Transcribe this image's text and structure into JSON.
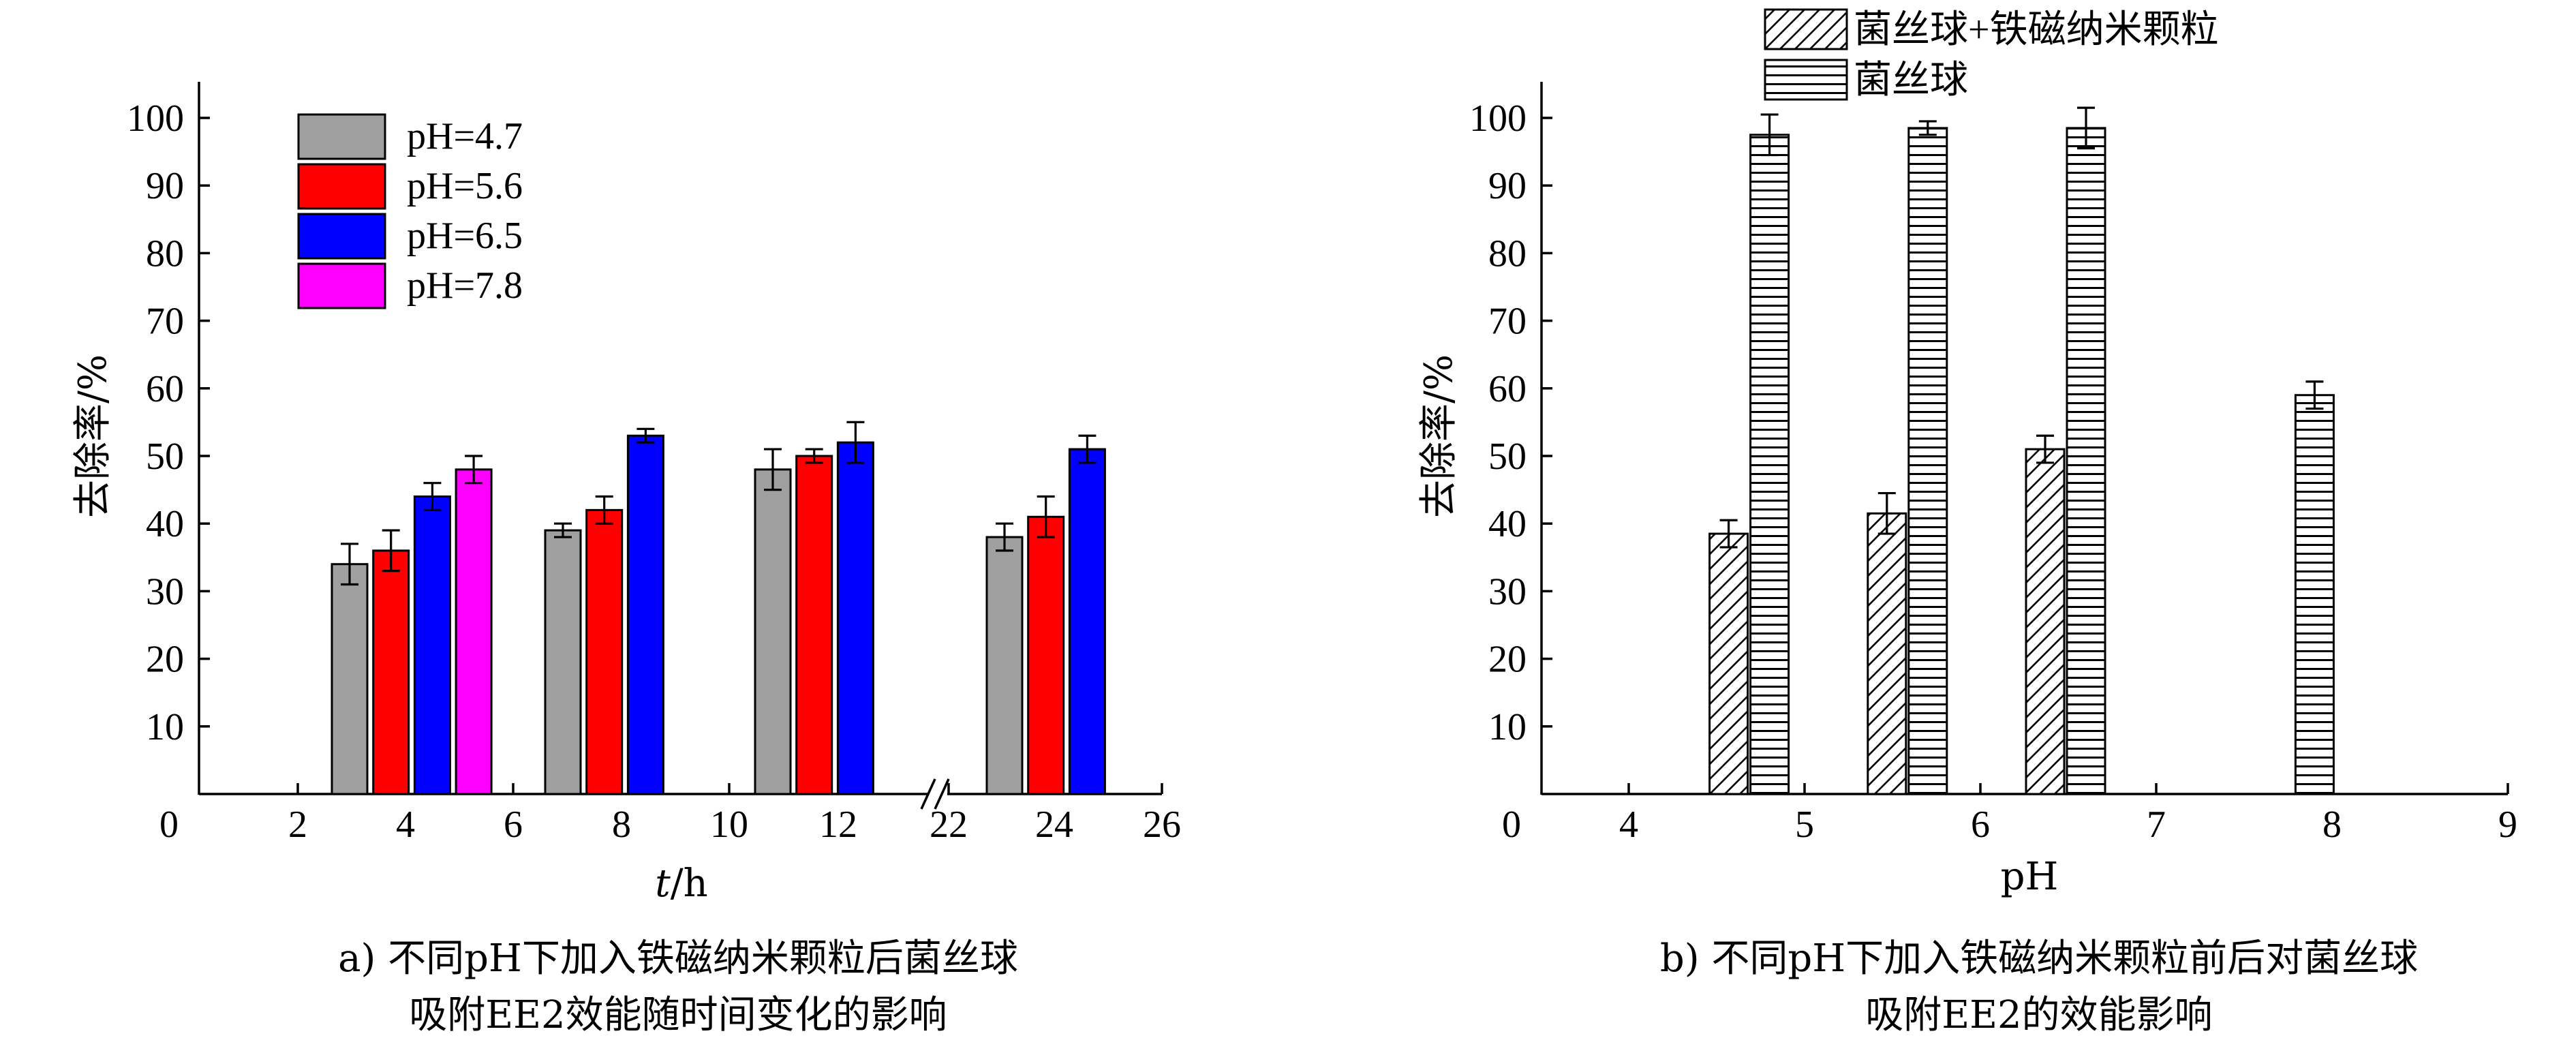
{
  "chart_data": [
    {
      "type": "bar",
      "ylabel": "去除率/%",
      "xlabel_italic": "t",
      "xlabel_rest": "/h",
      "ylim": [
        0,
        100
      ],
      "yticks": [
        "10",
        "20",
        "30",
        "40",
        "50",
        "60",
        "70",
        "80",
        "90",
        "100"
      ],
      "y_origin_label": "0",
      "xticks": [
        "2",
        "4",
        "6",
        "8",
        "10",
        "12",
        "22",
        "24",
        "26"
      ],
      "x_origin_label": "0",
      "axis_break": true,
      "categories": [
        "4",
        "8",
        "12",
        "24"
      ],
      "series": [
        {
          "name": "pH=4.7",
          "color": "#a0a0a0",
          "values": [
            34,
            39,
            48,
            38
          ],
          "errors": [
            3,
            1,
            3,
            2
          ]
        },
        {
          "name": "pH=5.6",
          "color": "#ff0000",
          "values": [
            36,
            42,
            50,
            41
          ],
          "errors": [
            3,
            2,
            1,
            3
          ]
        },
        {
          "name": "pH=6.5",
          "color": "#0000ff",
          "values": [
            44,
            53,
            52,
            51
          ],
          "errors": [
            2,
            1,
            3,
            2
          ]
        },
        {
          "name": "pH=7.8",
          "color": "#ff00ff",
          "values": [
            48,
            null,
            null,
            null
          ],
          "errors": [
            2,
            null,
            null,
            null
          ]
        }
      ],
      "legend_position": "top-left",
      "caption_lines": [
        "a) 不同pH下加入铁磁纳米颗粒后菌丝球",
        "吸附EE2效能随时间变化的影响"
      ]
    },
    {
      "type": "bar",
      "ylabel": "去除率/%",
      "xlabel": "pH",
      "ylim": [
        0,
        100
      ],
      "yticks": [
        "10",
        "20",
        "30",
        "40",
        "50",
        "60",
        "70",
        "80",
        "90",
        "100"
      ],
      "y_origin_label": "0",
      "xticks": [
        "4",
        "5",
        "6",
        "7",
        "8",
        "9"
      ],
      "x_origin_label": "0",
      "series": [
        {
          "name": "菌丝球+铁磁纳米颗粒",
          "pattern": "diagonal",
          "x": [
            4.7,
            5.6,
            6.5
          ],
          "values": [
            38.5,
            41.5,
            51
          ],
          "errors": [
            2,
            3,
            2
          ]
        },
        {
          "name": "菌丝球",
          "pattern": "horizontal",
          "x": [
            4.7,
            5.6,
            6.5,
            7.8
          ],
          "values": [
            97.5,
            98.5,
            98.5,
            59
          ],
          "errors": [
            3,
            1,
            3,
            2
          ]
        }
      ],
      "legend_position": "top",
      "caption_lines": [
        "b) 不同pH下加入铁磁纳米颗粒前后对菌丝球",
        "吸附EE2的效能影响"
      ]
    }
  ]
}
